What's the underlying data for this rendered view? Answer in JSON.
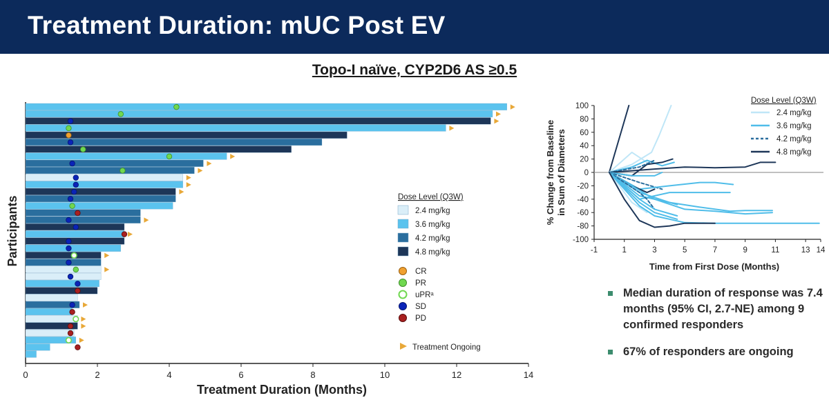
{
  "header": {
    "title": "Treatment Duration: mUC Post EV"
  },
  "subtitle": "Topo-I naïve, CYP2D6 AS ≥0.5",
  "colors": {
    "header_bg": "#0c2a5b",
    "dose_2_4": "#daeef8",
    "dose_3_6": "#5bc3ee",
    "dose_4_2": "#2a6e9e",
    "dose_4_8": "#1d3658",
    "cr": "#f0a030",
    "pr": "#70d850",
    "upr": "#70d850",
    "sd": "#0a24b8",
    "pd": "#a82020",
    "ongoing": "#e8a838"
  },
  "chart_data": [
    {
      "type": "bar",
      "orientation": "horizontal",
      "xlabel": "Treatment Duration (Months)",
      "ylabel": "Participants",
      "xlim": [
        0,
        14
      ],
      "xticks": [
        0,
        2,
        4,
        6,
        8,
        10,
        12,
        14
      ],
      "legend_title": "Dose Level (Q3W)",
      "dose_labels": [
        "2.4 mg/kg",
        "3.6 mg/kg",
        "4.2 mg/kg",
        "4.8 mg/kg"
      ],
      "response_labels": [
        "CR",
        "PR",
        "uPRᵃ",
        "SD",
        "PD"
      ],
      "ongoing_label": "Treatment Ongoing",
      "participants": [
        {
          "value": 13.4,
          "dose": "3.6",
          "response": "PR",
          "resp_x": 4.2,
          "ongoing": true
        },
        {
          "value": 13.0,
          "dose": "3.6",
          "response": "PR",
          "resp_x": 2.65,
          "ongoing": true
        },
        {
          "value": 12.95,
          "dose": "4.8",
          "response": "SD",
          "resp_x": 1.25,
          "ongoing": true
        },
        {
          "value": 11.7,
          "dose": "3.6",
          "response": "PR",
          "resp_x": 1.2,
          "ongoing": true
        },
        {
          "value": 8.95,
          "dose": "4.8",
          "response": "CR",
          "resp_x": 1.2,
          "ongoing": false
        },
        {
          "value": 8.25,
          "dose": "4.2",
          "response": "SD",
          "resp_x": 1.25,
          "ongoing": false
        },
        {
          "value": 7.4,
          "dose": "4.8",
          "response": "PR",
          "resp_x": 1.6,
          "ongoing": false
        },
        {
          "value": 5.6,
          "dose": "3.6",
          "response": "PR",
          "resp_x": 4.0,
          "ongoing": true
        },
        {
          "value": 4.95,
          "dose": "4.2",
          "response": "SD",
          "resp_x": 1.3,
          "ongoing": true
        },
        {
          "value": 4.7,
          "dose": "4.2",
          "response": "PR",
          "resp_x": 2.7,
          "ongoing": true
        },
        {
          "value": 4.38,
          "dose": "2.4",
          "response": "SD",
          "resp_x": 1.4,
          "ongoing": true
        },
        {
          "value": 4.38,
          "dose": "3.6",
          "response": "SD",
          "resp_x": 1.4,
          "ongoing": true
        },
        {
          "value": 4.18,
          "dose": "4.8",
          "response": "SD",
          "resp_x": 1.35,
          "ongoing": true
        },
        {
          "value": 4.18,
          "dose": "4.2",
          "response": "SD",
          "resp_x": 1.25,
          "ongoing": false
        },
        {
          "value": 4.1,
          "dose": "3.6",
          "response": "PR",
          "resp_x": 1.3,
          "ongoing": false
        },
        {
          "value": 3.2,
          "dose": "4.2",
          "response": "PD",
          "resp_x": 1.45,
          "ongoing": false
        },
        {
          "value": 3.2,
          "dose": "4.2",
          "response": "SD",
          "resp_x": 1.2,
          "ongoing": true
        },
        {
          "value": 2.75,
          "dose": "4.8",
          "response": "SD",
          "resp_x": 1.4,
          "ongoing": false
        },
        {
          "value": 2.75,
          "dose": "3.6",
          "response": "PD",
          "resp_x": 2.75,
          "ongoing": true
        },
        {
          "value": 2.75,
          "dose": "4.8",
          "response": "SD",
          "resp_x": 1.2,
          "ongoing": false
        },
        {
          "value": 2.65,
          "dose": "3.6",
          "response": "SD",
          "resp_x": 1.2,
          "ongoing": false
        },
        {
          "value": 2.1,
          "dose": "4.8",
          "response": "uPR",
          "resp_x": 1.35,
          "ongoing": true
        },
        {
          "value": 2.1,
          "dose": "4.2",
          "response": "SD",
          "resp_x": 1.2,
          "ongoing": false
        },
        {
          "value": 2.1,
          "dose": "2.4",
          "response": "PR",
          "resp_x": 1.4,
          "ongoing": true
        },
        {
          "value": 2.1,
          "dose": "2.4",
          "response": "SD",
          "resp_x": 1.25,
          "ongoing": false
        },
        {
          "value": 2.05,
          "dose": "3.6",
          "response": "SD",
          "resp_x": 1.45,
          "ongoing": false
        },
        {
          "value": 2.0,
          "dose": "4.8",
          "response": "PD",
          "resp_x": 1.45,
          "ongoing": false
        },
        {
          "value": 1.45,
          "dose": "2.4",
          "response": null,
          "resp_x": null,
          "ongoing": false
        },
        {
          "value": 1.5,
          "dose": "4.2",
          "response": "SD",
          "resp_x": 1.3,
          "ongoing": true
        },
        {
          "value": 1.3,
          "dose": "3.6",
          "response": "PD",
          "resp_x": 1.3,
          "ongoing": false
        },
        {
          "value": 1.45,
          "dose": "2.4",
          "response": "uPR",
          "resp_x": 1.4,
          "ongoing": true
        },
        {
          "value": 1.45,
          "dose": "4.8",
          "response": "PD",
          "resp_x": 1.25,
          "ongoing": true
        },
        {
          "value": 1.35,
          "dose": "2.4",
          "response": "PD",
          "resp_x": 1.25,
          "ongoing": false
        },
        {
          "value": 1.4,
          "dose": "3.6",
          "response": "uPR",
          "resp_x": 1.2,
          "ongoing": true
        },
        {
          "value": 0.68,
          "dose": "3.6",
          "response": "PD",
          "resp_x": 1.45,
          "ongoing": false
        },
        {
          "value": 0.3,
          "dose": "3.6",
          "response": null,
          "resp_x": null,
          "ongoing": false
        }
      ]
    },
    {
      "type": "line",
      "xlabel": "Time from First Dose (Months)",
      "ylabel_lines": [
        "% Change from Baseline",
        "in Sum of Diameters"
      ],
      "xlim": [
        -1,
        14
      ],
      "ylim": [
        -100,
        100
      ],
      "xticks": [
        -1,
        1,
        3,
        5,
        7,
        9,
        11,
        13,
        14
      ],
      "yticks": [
        100,
        80,
        60,
        40,
        20,
        0,
        -20,
        -40,
        -60,
        -80,
        -100
      ],
      "legend_title": "Dose Level (Q3W)",
      "legend": [
        {
          "label": "2.4 mg/kg",
          "dose": "2.4"
        },
        {
          "label": "3.6 mg/kg",
          "dose": "3.6"
        },
        {
          "label": "4.2 mg/kg",
          "dose": "4.2"
        },
        {
          "label": "4.8 mg/kg",
          "dose": "4.8"
        }
      ],
      "series": [
        {
          "dose": "4.8",
          "x": [
            0,
            1.3
          ],
          "y": [
            0,
            100
          ]
        },
        {
          "dose": "2.4",
          "x": [
            0,
            1.5,
            2.8,
            3.3,
            4.1
          ],
          "y": [
            0,
            12,
            30,
            55,
            100
          ]
        },
        {
          "dose": "2.4",
          "x": [
            0,
            1.5,
            2.5
          ],
          "y": [
            0,
            30,
            15
          ]
        },
        {
          "dose": "3.6",
          "x": [
            0,
            1.5,
            2.5,
            3.5,
            4.3
          ],
          "y": [
            0,
            8,
            18,
            10,
            15
          ]
        },
        {
          "dose": "4.8",
          "x": [
            0,
            1.5,
            2.5,
            3.5,
            4.2
          ],
          "y": [
            0,
            -5,
            12,
            15,
            20
          ]
        },
        {
          "dose": "4.2",
          "x": [
            0,
            2,
            3
          ],
          "y": [
            0,
            8,
            18
          ]
        },
        {
          "dose": "4.8",
          "x": [
            0,
            3,
            5,
            7,
            9,
            10,
            11
          ],
          "y": [
            0,
            5,
            8,
            7,
            8,
            15,
            15
          ]
        },
        {
          "dose": "3.6",
          "x": [
            0,
            1.5,
            3,
            3.5
          ],
          "y": [
            0,
            -5,
            -5,
            0
          ]
        },
        {
          "dose": "4.2",
          "x": [
            0,
            2,
            3.5
          ],
          "y": [
            0,
            -15,
            -25
          ]
        },
        {
          "dose": "3.6",
          "x": [
            0,
            2,
            4,
            6,
            7,
            8.2
          ],
          "y": [
            0,
            -25,
            -20,
            -15,
            -15,
            -18
          ]
        },
        {
          "dose": "3.6",
          "x": [
            0,
            2,
            4,
            6,
            8
          ],
          "y": [
            0,
            -40,
            -30,
            -30,
            -30
          ]
        },
        {
          "dose": "4.8",
          "x": [
            0,
            1.5,
            2.5,
            3
          ],
          "y": [
            0,
            -20,
            -30,
            -25
          ]
        },
        {
          "dose": "3.6",
          "x": [
            0,
            2,
            4,
            4.5
          ],
          "y": [
            0,
            -30,
            -45,
            -48
          ]
        },
        {
          "dose": "3.6",
          "x": [
            0,
            2,
            4,
            6,
            8,
            9,
            10.8
          ],
          "y": [
            0,
            -35,
            -45,
            -52,
            -58,
            -57,
            -57
          ]
        },
        {
          "dose": "3.6",
          "x": [
            0,
            3,
            5,
            7,
            9,
            10.8
          ],
          "y": [
            0,
            -40,
            -55,
            -58,
            -62,
            -60
          ]
        },
        {
          "dose": "4.2",
          "x": [
            0,
            2,
            2.5,
            3
          ],
          "y": [
            0,
            -30,
            -40,
            -55
          ]
        },
        {
          "dose": "3.6",
          "x": [
            0,
            2,
            3,
            4.5
          ],
          "y": [
            0,
            -40,
            -55,
            -65
          ]
        },
        {
          "dose": "3.6",
          "x": [
            0,
            2,
            3,
            4.5
          ],
          "y": [
            0,
            -45,
            -60,
            -70
          ]
        },
        {
          "dose": "2.4",
          "x": [
            0,
            1.5,
            2.5
          ],
          "y": [
            0,
            -45,
            -60
          ]
        },
        {
          "dose": "3.6",
          "x": [
            0,
            2,
            3,
            5,
            7,
            13.9
          ],
          "y": [
            0,
            -50,
            -65,
            -75,
            -76,
            -76
          ]
        },
        {
          "dose": "4.8",
          "x": [
            0,
            1,
            2,
            3,
            4,
            5,
            6,
            7
          ],
          "y": [
            0,
            -40,
            -72,
            -82,
            -80,
            -76,
            -76,
            -76
          ]
        }
      ]
    }
  ],
  "bullets": [
    "Median duration of response was 7.4 months (95% CI, 2.7-NE) among 9 confirmed responders",
    "67% of responders are ongoing"
  ]
}
